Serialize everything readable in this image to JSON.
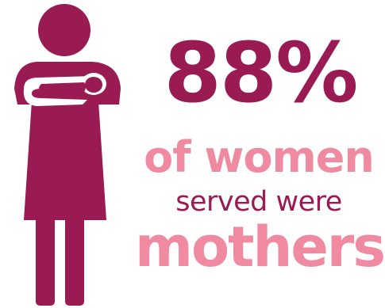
{
  "infographic": {
    "statistic": "88%",
    "line_of_women": "of women",
    "line_served_were": "served were",
    "line_mothers": "mothers"
  },
  "icon": {
    "name": "mother-holding-baby-icon"
  },
  "colors": {
    "dark": "#9a1a53",
    "light": "#f08aa1"
  }
}
